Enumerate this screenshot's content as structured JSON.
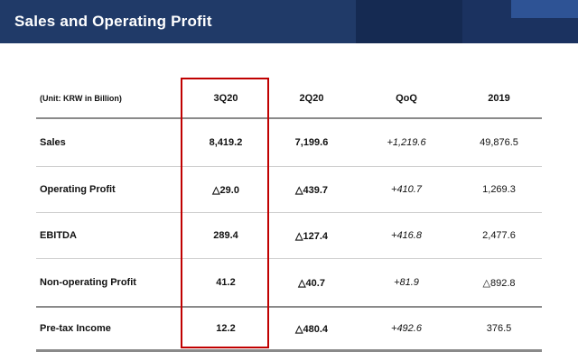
{
  "header": {
    "title": "Sales and Operating Profit",
    "background_color": "#203a68",
    "decoration_colors": [
      "#152a52",
      "#1b3260",
      "#2e5395"
    ]
  },
  "table": {
    "unit_label": "(Unit: KRW in Billion)",
    "columns": [
      "3Q20",
      "2Q20",
      "QoQ",
      "2019"
    ],
    "rows": [
      {
        "label": "Sales",
        "q3": "8,419.2",
        "q2": "7,199.6",
        "qoq": "+1,219.6",
        "y2019": "49,876.5"
      },
      {
        "label": "Operating Profit",
        "q3": "△29.0",
        "q2": "△439.7",
        "qoq": "+410.7",
        "y2019": "1,269.3"
      },
      {
        "label": "EBITDA",
        "q3": "289.4",
        "q2": "△127.4",
        "qoq": "+416.8",
        "y2019": "2,477.6"
      },
      {
        "label": "Non-operating Profit",
        "q3": "41.2",
        "q2": "△40.7",
        "qoq": "+81.9",
        "y2019": "△892.8"
      },
      {
        "label": "Pre-tax Income",
        "q3": "12.2",
        "q2": "△480.4",
        "qoq": "+492.6",
        "y2019": "376.5"
      }
    ],
    "negative_marker": "△",
    "highlight_color": "#c00000",
    "highlighted_column": "3Q20"
  }
}
